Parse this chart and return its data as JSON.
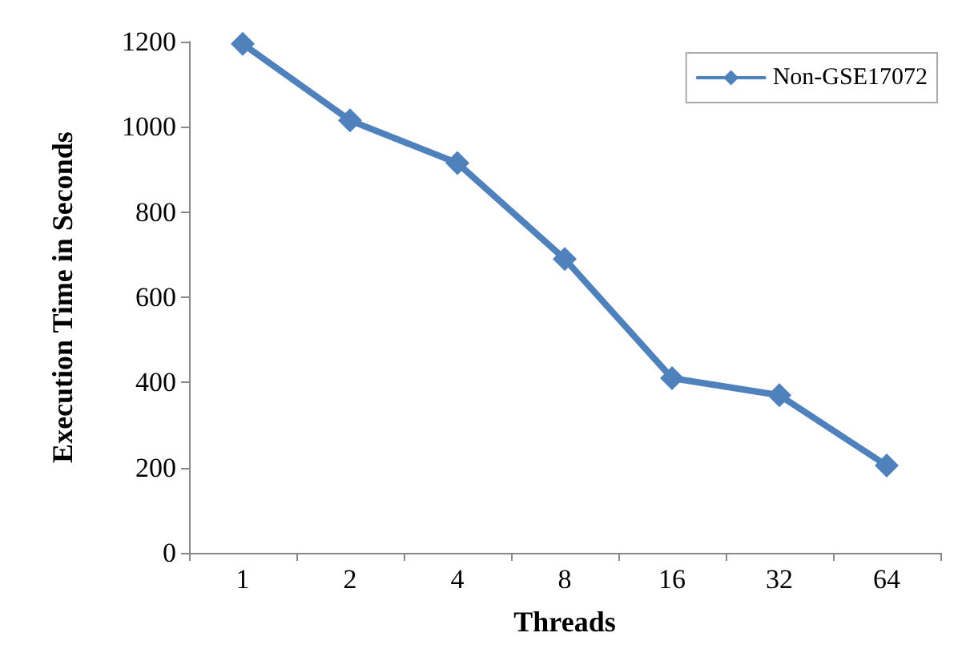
{
  "chart_data": {
    "type": "line",
    "xlabel": "Threads",
    "ylabel": "Execution Time in Seconds",
    "categories": [
      "1",
      "2",
      "4",
      "8",
      "16",
      "32",
      "64"
    ],
    "series": [
      {
        "name": "Non-GSE17072",
        "color": "#4f81bd",
        "values": [
          1195,
          1015,
          915,
          690,
          410,
          370,
          205
        ]
      }
    ],
    "ylim": [
      0,
      1200
    ],
    "yticks": [
      0,
      200,
      400,
      600,
      800,
      1000,
      1200
    ],
    "grid": false,
    "legend": "top right",
    "marker": "diamond",
    "line_style": "solid"
  }
}
